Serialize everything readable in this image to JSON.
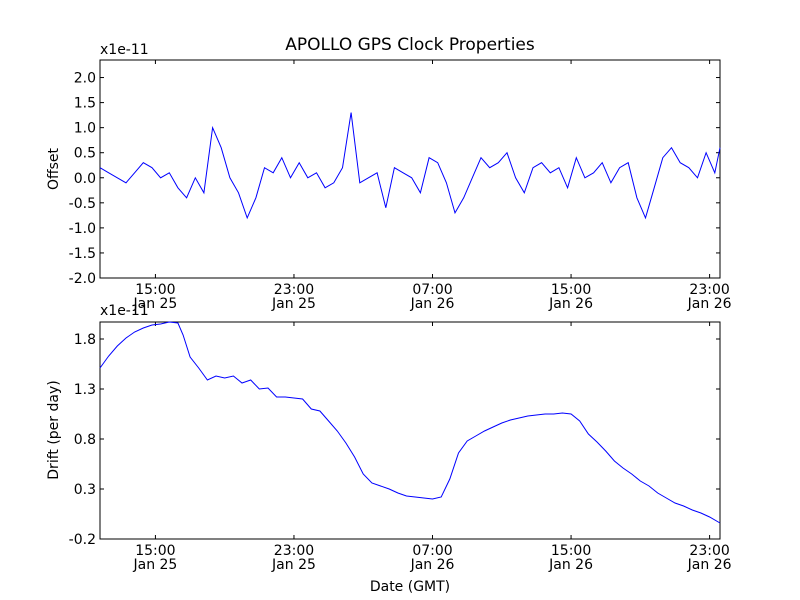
{
  "title": "APOLLO GPS Clock Properties",
  "chart_data": [
    {
      "type": "line",
      "name": "offset-panel",
      "ylabel": "Offset",
      "xlabel": "",
      "y_multiplier": "x1e-11",
      "x_tick_labels": [
        {
          "time": "15:00",
          "date": "Jan 25"
        },
        {
          "time": "23:00",
          "date": "Jan 25"
        },
        {
          "time": "07:00",
          "date": "Jan 26"
        },
        {
          "time": "15:00",
          "date": "Jan 26"
        },
        {
          "time": "23:00",
          "date": "Jan 26"
        }
      ],
      "x_hours_since_jan25_00": [
        15,
        23,
        31,
        39,
        47
      ],
      "xlim_hours": [
        11.8,
        47.6
      ],
      "ylim": [
        -2.0,
        2.35
      ],
      "y_ticks": [
        "2.0",
        "1.5",
        "1.0",
        "0.5",
        "0.0",
        "-0.5",
        "-1.0",
        "-1.5",
        "-2.0"
      ],
      "y_tick_values": [
        2.0,
        1.5,
        1.0,
        0.5,
        0.0,
        -0.5,
        -1.0,
        -1.5,
        -2.0
      ],
      "color": "#0000ff",
      "series": [
        {
          "x": [
            11.8,
            12.3,
            12.8,
            13.3,
            13.8,
            14.3,
            14.8,
            15.3,
            15.8,
            16.3,
            16.8,
            17.3,
            17.8,
            18.3,
            18.8,
            19.3,
            19.8,
            20.3,
            20.8,
            21.3,
            21.8,
            22.3,
            22.8,
            23.3,
            23.8,
            24.3,
            24.8,
            25.3,
            25.8,
            26.3,
            26.8,
            27.3,
            27.8,
            28.3,
            28.8,
            29.3,
            29.8,
            30.3,
            30.8,
            31.3,
            31.8,
            32.3,
            32.8,
            33.3,
            33.8,
            34.3,
            34.8,
            35.3,
            35.8,
            36.3,
            36.8,
            37.3,
            37.8,
            38.3,
            38.8,
            39.3,
            39.8,
            40.3,
            40.8,
            41.3,
            41.8,
            42.3,
            42.8,
            43.3,
            43.8,
            44.3,
            44.8,
            45.3,
            45.8,
            46.3,
            46.8,
            47.3,
            47.6
          ],
          "y": [
            0.2,
            0.1,
            0.0,
            -0.1,
            0.1,
            0.3,
            0.2,
            0.0,
            0.1,
            -0.2,
            -0.4,
            0.0,
            -0.3,
            1.0,
            0.6,
            0.0,
            -0.3,
            -0.8,
            -0.4,
            0.2,
            0.1,
            0.4,
            0.0,
            0.3,
            0.0,
            0.1,
            -0.2,
            -0.1,
            0.2,
            1.3,
            -0.1,
            0.0,
            0.1,
            -0.6,
            0.2,
            0.1,
            0.0,
            -0.3,
            0.4,
            0.3,
            -0.1,
            -0.7,
            -0.4,
            0.0,
            0.4,
            0.2,
            0.3,
            0.5,
            0.0,
            -0.3,
            0.2,
            0.3,
            0.1,
            0.2,
            -0.2,
            0.4,
            0.0,
            0.1,
            0.3,
            -0.1,
            0.2,
            0.3,
            -0.4,
            -0.8,
            -0.2,
            0.4,
            0.6,
            0.3,
            0.2,
            0.0,
            0.5,
            0.1,
            0.6
          ]
        }
      ]
    },
    {
      "type": "line",
      "name": "drift-panel",
      "ylabel": "Drift (per day)",
      "xlabel": "Date (GMT)",
      "y_multiplier": "x1e-11",
      "x_tick_labels": [
        {
          "time": "15:00",
          "date": "Jan 25"
        },
        {
          "time": "23:00",
          "date": "Jan 25"
        },
        {
          "time": "07:00",
          "date": "Jan 26"
        },
        {
          "time": "15:00",
          "date": "Jan 26"
        },
        {
          "time": "23:00",
          "date": "Jan 26"
        }
      ],
      "x_hours_since_jan25_00": [
        15,
        23,
        31,
        39,
        47
      ],
      "xlim_hours": [
        11.8,
        47.6
      ],
      "ylim": [
        -0.2,
        1.97
      ],
      "y_ticks": [
        "1.8",
        "1.3",
        "0.8",
        "0.3",
        "-0.2"
      ],
      "y_tick_values": [
        1.8,
        1.3,
        0.8,
        0.3,
        -0.2
      ],
      "color": "#0000ff",
      "series": [
        {
          "x": [
            11.8,
            12.3,
            12.8,
            13.3,
            13.8,
            14.3,
            14.8,
            15.3,
            15.8,
            16.3,
            16.6,
            17.0,
            17.5,
            18.0,
            18.5,
            19.0,
            19.5,
            20.0,
            20.5,
            21.0,
            21.5,
            22.0,
            22.5,
            23.0,
            23.5,
            24.0,
            24.5,
            25.0,
            25.5,
            26.0,
            26.5,
            27.0,
            27.5,
            28.0,
            28.5,
            29.0,
            29.5,
            30.0,
            30.5,
            31.0,
            31.5,
            32.0,
            32.5,
            33.0,
            33.5,
            34.0,
            34.5,
            35.0,
            35.5,
            36.0,
            36.5,
            37.0,
            37.5,
            38.0,
            38.5,
            39.0,
            39.5,
            40.0,
            40.5,
            41.0,
            41.5,
            42.0,
            42.5,
            43.0,
            43.5,
            44.0,
            44.5,
            45.0,
            45.5,
            46.0,
            46.5,
            47.0,
            47.6
          ],
          "y": [
            1.51,
            1.63,
            1.73,
            1.81,
            1.87,
            1.91,
            1.94,
            1.95,
            1.97,
            1.96,
            1.84,
            1.62,
            1.51,
            1.39,
            1.43,
            1.41,
            1.43,
            1.36,
            1.39,
            1.3,
            1.31,
            1.22,
            1.22,
            1.21,
            1.2,
            1.1,
            1.08,
            0.98,
            0.88,
            0.76,
            0.62,
            0.45,
            0.36,
            0.33,
            0.3,
            0.26,
            0.23,
            0.22,
            0.21,
            0.2,
            0.22,
            0.4,
            0.66,
            0.78,
            0.83,
            0.88,
            0.92,
            0.96,
            0.99,
            1.01,
            1.03,
            1.04,
            1.05,
            1.05,
            1.06,
            1.05,
            0.98,
            0.85,
            0.77,
            0.68,
            0.58,
            0.51,
            0.45,
            0.38,
            0.33,
            0.26,
            0.21,
            0.16,
            0.13,
            0.09,
            0.06,
            0.02,
            -0.04
          ]
        }
      ]
    }
  ]
}
